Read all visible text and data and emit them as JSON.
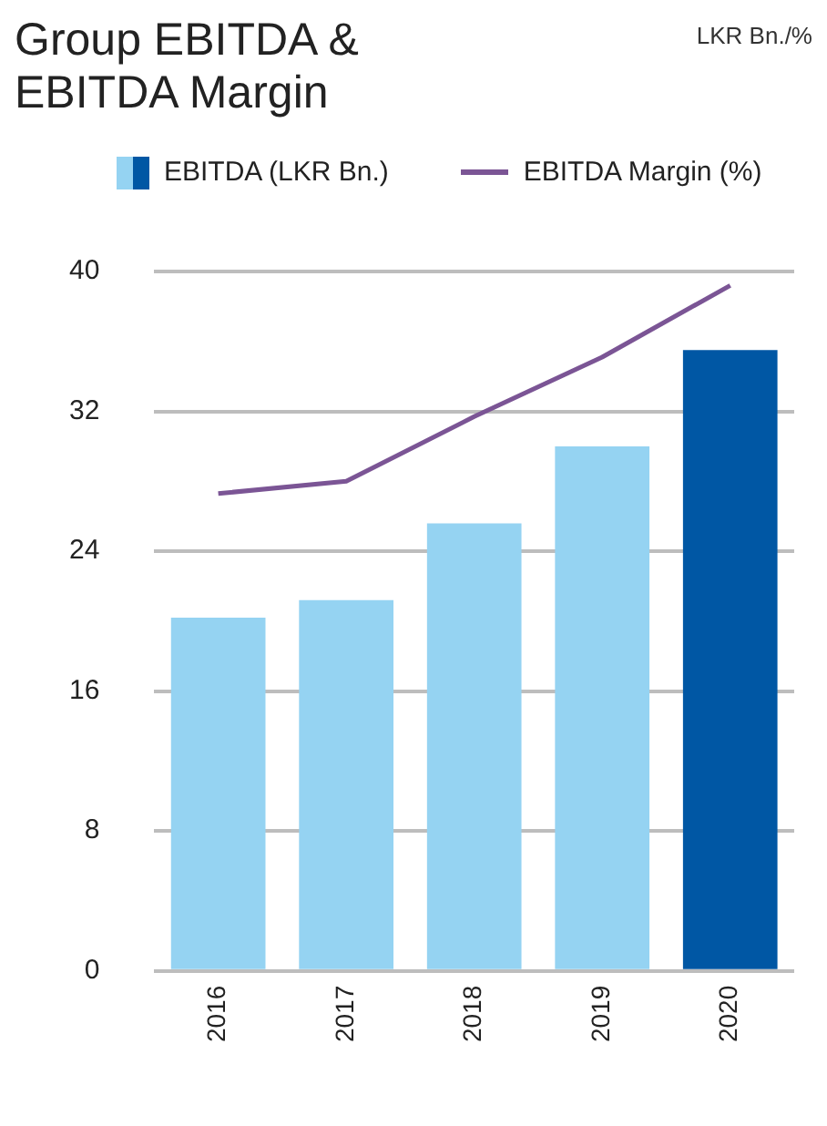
{
  "chart_data": {
    "type": "bar",
    "title": "Group EBITDA &\nEBITDA Margin",
    "annotations": [
      "LKR Bn./%"
    ],
    "categories": [
      "2016",
      "2017",
      "2018",
      "2019",
      "2020"
    ],
    "series": [
      {
        "name": "EBITDA (LKR Bn.)",
        "colors": [
          "#95d3f2",
          "#95d3f2",
          "#95d3f2",
          "#95d3f2",
          "#0057a4"
        ],
        "values": [
          20.2,
          21.2,
          25.6,
          30.0,
          35.5
        ]
      },
      {
        "name": "EBITDA Margin (%)",
        "type": "line",
        "color": "#7b5595",
        "values": [
          27.3,
          28.0,
          31.7,
          35.1,
          39.2
        ]
      }
    ],
    "ylim": [
      0,
      40
    ],
    "yticks": [
      0,
      8,
      16,
      24,
      32,
      40
    ],
    "grid": "y",
    "legend": "top",
    "marker": "none"
  }
}
